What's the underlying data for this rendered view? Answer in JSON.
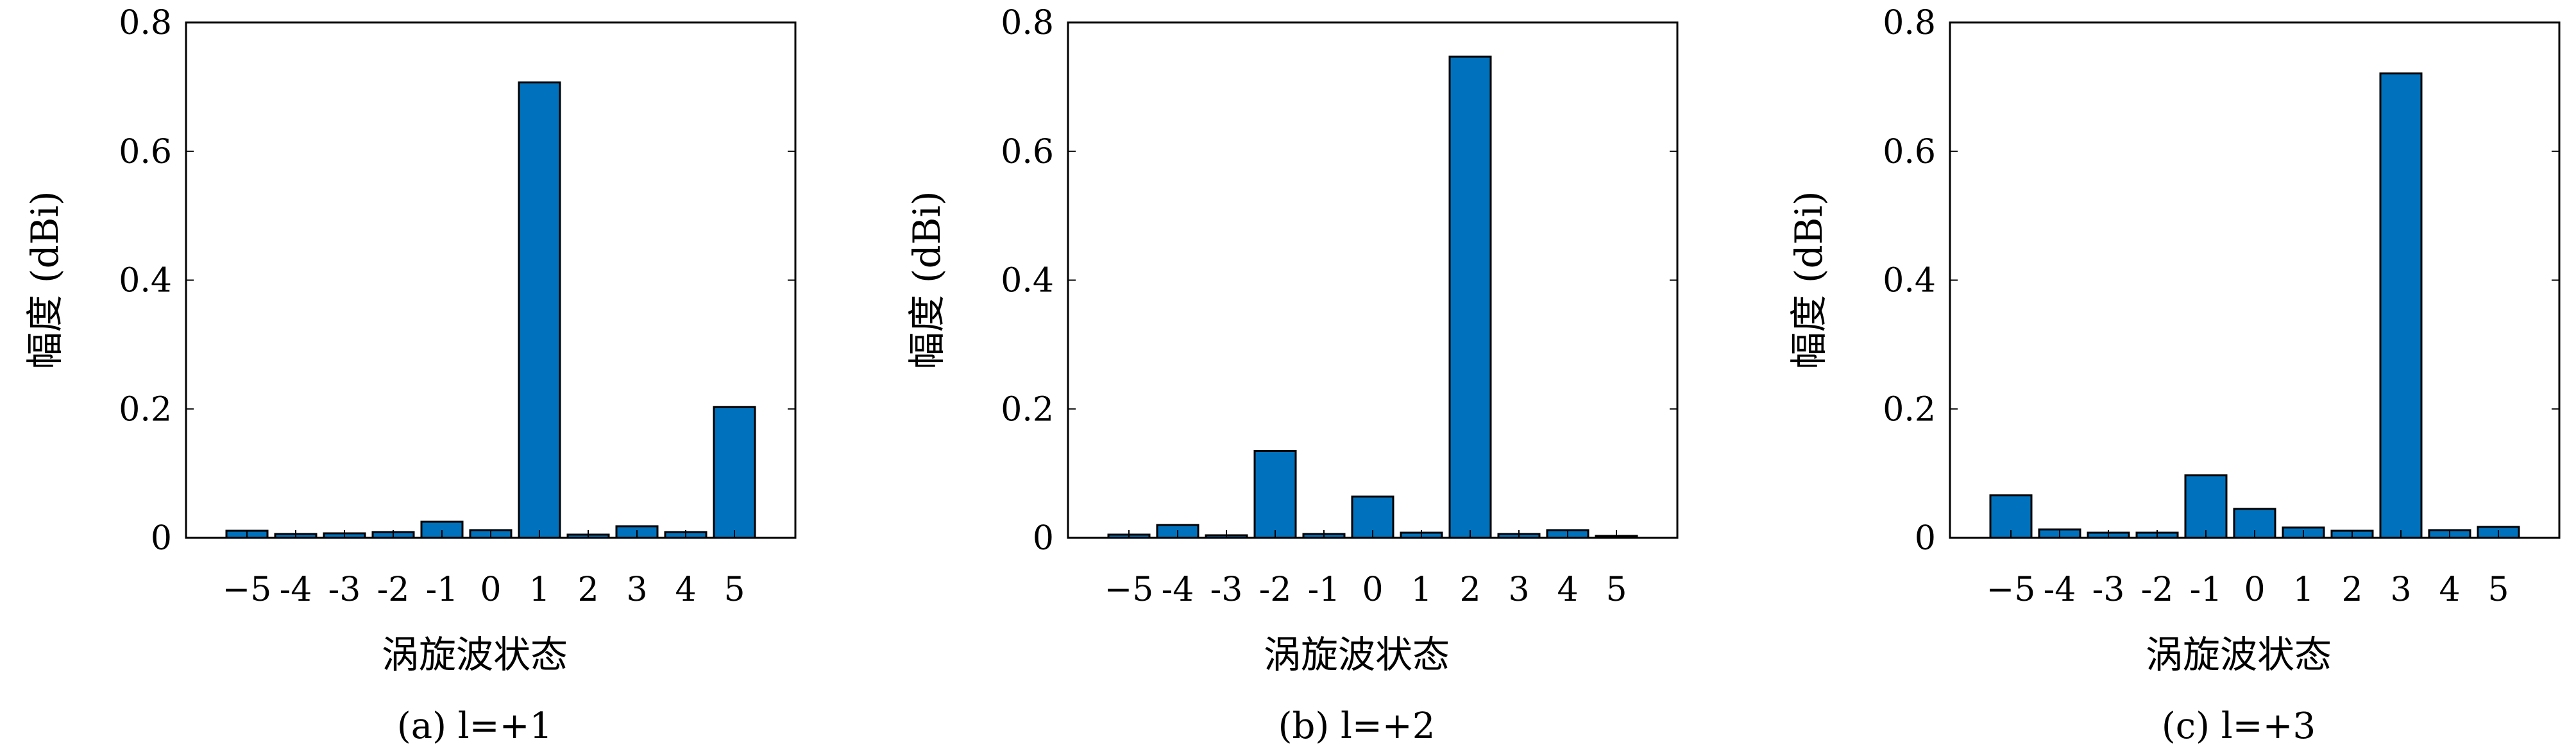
{
  "chart_data": [
    {
      "type": "bar",
      "caption": "(a) l=+1",
      "xlabel": "涡旋波状态",
      "ylabel": "幅度 (dBi)",
      "categories": [
        "−5",
        "-4",
        "-3",
        "-2",
        "-1",
        "0",
        "1",
        "2",
        "3",
        "4",
        "5"
      ],
      "values": [
        0.011,
        0.006,
        0.007,
        0.009,
        0.025,
        0.012,
        0.707,
        0.005,
        0.018,
        0.009,
        0.203
      ],
      "ylim": [
        0,
        0.8
      ],
      "yticks": [
        "0",
        "0.2",
        "0.4",
        "0.6",
        "0.8"
      ],
      "bar_color": "#0072BD",
      "grid": false
    },
    {
      "type": "bar",
      "caption": "(b) l=+2",
      "xlabel": "涡旋波状态",
      "ylabel": "幅度 (dBi)",
      "categories": [
        "−5",
        "-4",
        "-3",
        "-2",
        "-1",
        "0",
        "1",
        "2",
        "3",
        "4",
        "5"
      ],
      "values": [
        0.005,
        0.02,
        0.004,
        0.135,
        0.006,
        0.064,
        0.008,
        0.747,
        0.006,
        0.012,
        0.003
      ],
      "ylim": [
        0,
        0.8
      ],
      "yticks": [
        "0",
        "0.2",
        "0.4",
        "0.6",
        "0.8"
      ],
      "bar_color": "#0072BD",
      "grid": false
    },
    {
      "type": "bar",
      "caption": "(c) l=+3",
      "xlabel": "涡旋波状态",
      "ylabel": "幅度 (dBi)",
      "categories": [
        "−5",
        "-4",
        "-3",
        "-2",
        "-1",
        "0",
        "1",
        "2",
        "3",
        "4",
        "5"
      ],
      "values": [
        0.066,
        0.013,
        0.008,
        0.008,
        0.097,
        0.045,
        0.016,
        0.011,
        0.721,
        0.012,
        0.017
      ],
      "ylim": [
        0,
        0.8
      ],
      "yticks": [
        "0",
        "0.2",
        "0.4",
        "0.6",
        "0.8"
      ],
      "bar_color": "#0072BD",
      "grid": false
    }
  ]
}
